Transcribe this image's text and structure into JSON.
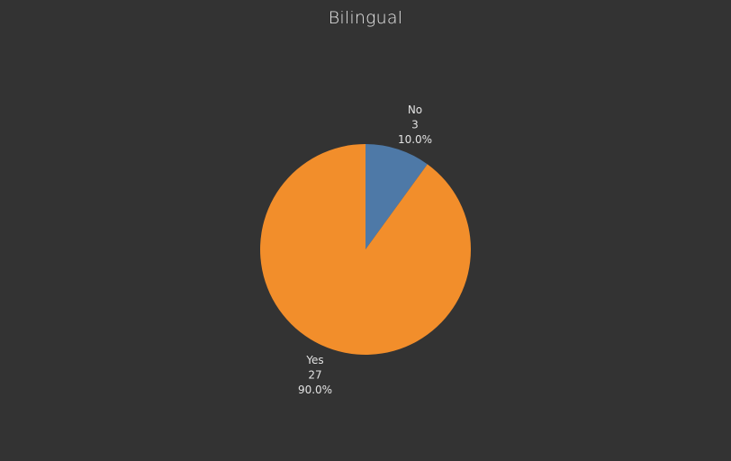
{
  "chart_data": {
    "type": "pie",
    "title": "Bilingual",
    "slices": [
      {
        "label": "No",
        "value": 3,
        "percent": "10.0%",
        "color": "#4e79a7"
      },
      {
        "label": "Yes",
        "value": 27,
        "percent": "90.0%",
        "color": "#f28e2b"
      }
    ],
    "background": "#333333"
  }
}
